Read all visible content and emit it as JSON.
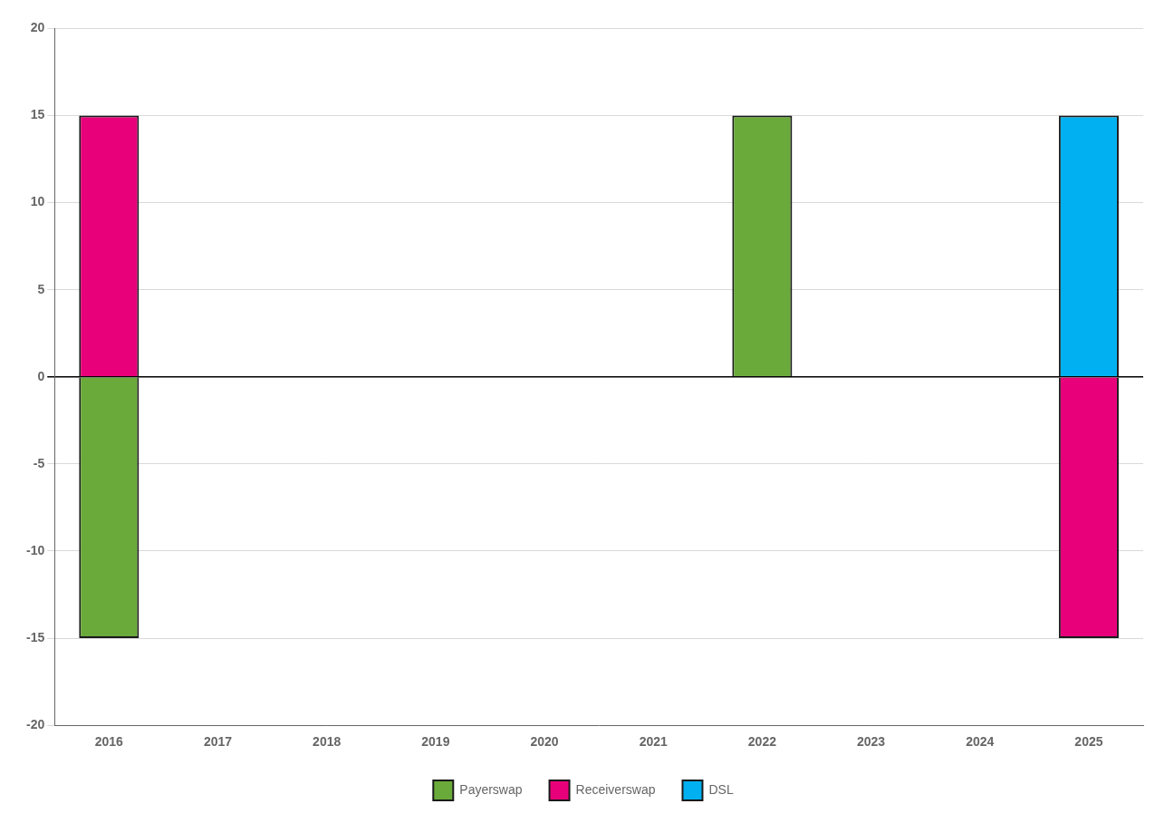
{
  "chart_data": {
    "type": "bar",
    "categories": [
      "2016",
      "2017",
      "2018",
      "2019",
      "2020",
      "2021",
      "2022",
      "2023",
      "2024",
      "2025"
    ],
    "series": [
      {
        "name": "Payerswap",
        "color": "#6aaa3a",
        "values": [
          -15,
          0,
          0,
          0,
          0,
          0,
          15,
          0,
          0,
          0
        ]
      },
      {
        "name": "Receiverswap",
        "color": "#e8007a",
        "values": [
          15,
          0,
          0,
          0,
          0,
          0,
          0,
          0,
          0,
          -15
        ]
      },
      {
        "name": "DSL",
        "color": "#00b0f0",
        "values": [
          0,
          0,
          0,
          0,
          0,
          0,
          0,
          0,
          0,
          15
        ]
      }
    ],
    "ylim": [
      -20,
      20
    ],
    "yticks": [
      -20,
      -15,
      -10,
      -5,
      0,
      5,
      10,
      15,
      20
    ],
    "grid": true,
    "legend": "bottom"
  }
}
